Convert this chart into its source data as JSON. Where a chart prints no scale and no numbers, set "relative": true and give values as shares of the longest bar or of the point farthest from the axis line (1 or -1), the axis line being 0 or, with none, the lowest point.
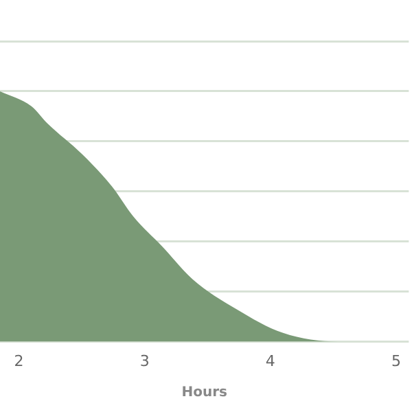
{
  "chart_data": {
    "type": "area",
    "xlabel": "Hours",
    "relative": true,
    "x": [
      1.85,
      2.1,
      2.23,
      2.5,
      2.74,
      2.91,
      3.14,
      3.38,
      3.73,
      4.1,
      4.54,
      5.0
    ],
    "series": [
      {
        "color": "#7a9a76",
        "values": [
          1.0,
          0.94,
          0.87,
          0.75,
          0.62,
          0.5,
          0.38,
          0.25,
          0.13,
          0.035,
          0,
          0
        ]
      }
    ],
    "xlim": [
      1.85,
      5.1
    ],
    "xticks": [
      2,
      3,
      4,
      5
    ],
    "grid": "y",
    "legend": false
  }
}
